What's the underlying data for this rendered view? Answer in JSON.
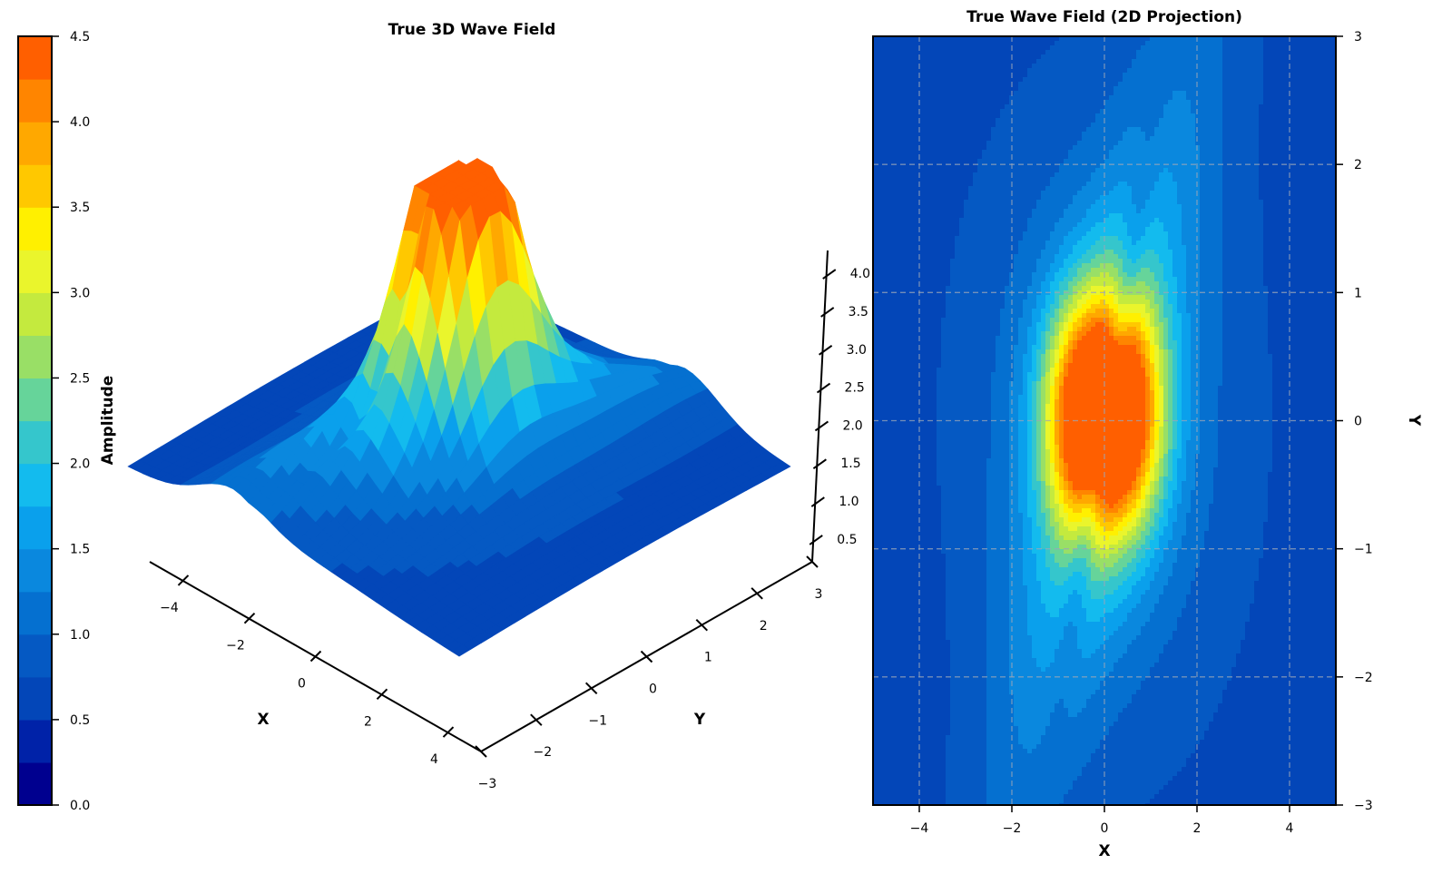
{
  "chart_data": [
    {
      "type": "surface3d",
      "title": "True 3D Wave Field",
      "xlabel": "X",
      "ylabel": "Y",
      "x_ticks": [
        "−4",
        "−2",
        "0",
        "2",
        "4"
      ],
      "y_ticks": [
        "−3",
        "−2",
        "−1",
        "0",
        "1",
        "2",
        "3"
      ],
      "z_ticks": [
        "0.5",
        "1.0",
        "1.5",
        "2.0",
        "2.5",
        "3.0",
        "3.5",
        "4.0"
      ],
      "xlim": [
        -5,
        5
      ],
      "ylim": [
        -3,
        3
      ],
      "zlim": [
        0.2,
        4.3
      ],
      "peaks": [
        {
          "x": -0.45,
          "y": 0.05,
          "z": 4.3
        },
        {
          "x": 0.45,
          "y": 0.05,
          "z": 4.2
        }
      ],
      "grid": false
    },
    {
      "type": "contourf",
      "title": "True Wave Field (2D Projection)",
      "xlabel": "X",
      "ylabel": "Y",
      "x_ticks": [
        "−4",
        "−2",
        "0",
        "2",
        "4"
      ],
      "y_ticks": [
        "−3",
        "−2",
        "−1",
        "0",
        "1",
        "2",
        "3"
      ],
      "xlim": [
        -5,
        5
      ],
      "ylim": [
        -3,
        3
      ],
      "grid": true,
      "peaks": [
        {
          "x": -0.45,
          "y": 0.05,
          "z": 4.3
        },
        {
          "x": 0.45,
          "y": 0.05,
          "z": 4.2
        }
      ]
    }
  ],
  "colorbar": {
    "label": "Amplitude",
    "ticks": [
      "0.0",
      "0.5",
      "1.0",
      "1.5",
      "2.0",
      "2.5",
      "3.0",
      "3.5",
      "4.0",
      "4.5"
    ],
    "range": [
      0,
      4.5
    ],
    "levels": 18,
    "colors": [
      "#00008f",
      "#0022a8",
      "#0346b8",
      "#0559c3",
      "#0570d0",
      "#0a88de",
      "#0aa0ec",
      "#13bbee",
      "#35c6cc",
      "#66d49a",
      "#99df66",
      "#c4ea3e",
      "#eaf52c",
      "#fff000",
      "#ffc800",
      "#ffa800",
      "#ff8500",
      "#ff5f00"
    ]
  }
}
